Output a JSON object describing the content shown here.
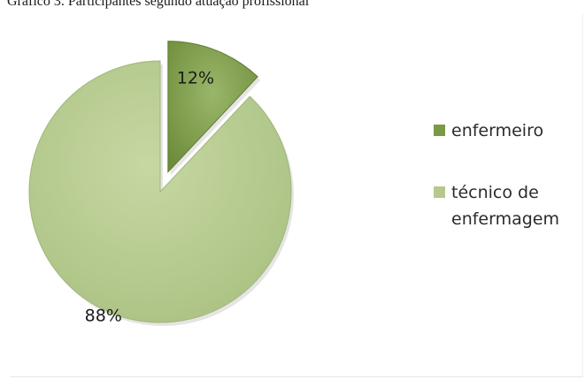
{
  "caption": "Gráfico 3. Participantes segundo atuação profissional",
  "chart_data": {
    "type": "pie",
    "title": "",
    "categories": [
      "enfermeiro",
      "técnico de enfermagem"
    ],
    "values": [
      12,
      88
    ],
    "data_labels": [
      "12%",
      "88%"
    ],
    "colors": [
      "#7a9a45",
      "#b5c98f"
    ],
    "exploded": "enfermeiro",
    "legend_position": "right"
  }
}
